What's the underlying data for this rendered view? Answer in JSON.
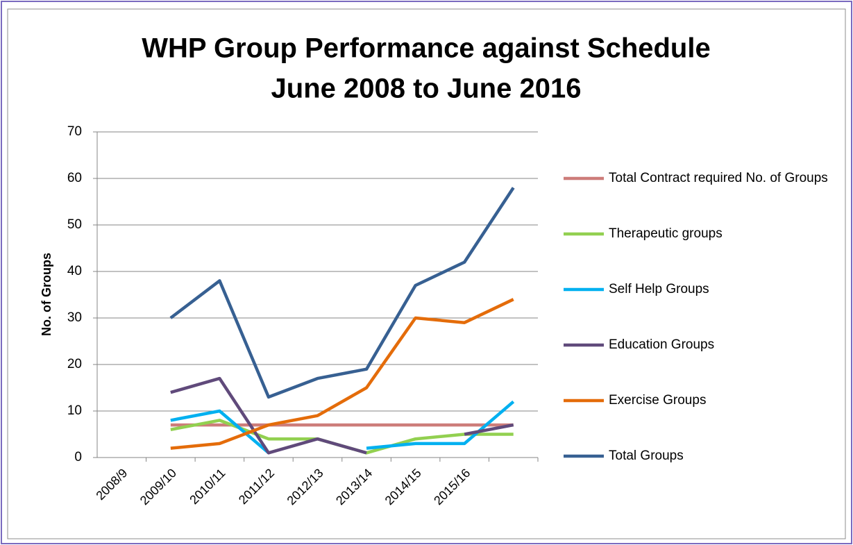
{
  "chart_data": {
    "type": "line",
    "title": [
      "WHP Group Performance against Schedule",
      "June 2008 to June 2016"
    ],
    "y_label": "No. of Groups",
    "categories": [
      "2008/9",
      "2009/10",
      "2010/11",
      "2011/12",
      "2012/13",
      "2013/14",
      "2014/15",
      "2015/16",
      null
    ],
    "series": [
      {
        "name": "Total Contract required No. of Groups",
        "color": "#cd7d7a",
        "values": [
          null,
          7,
          7,
          7,
          7,
          7,
          7,
          7,
          7
        ]
      },
      {
        "name": "Therapeutic groups",
        "color": "#92d050",
        "values": [
          null,
          6,
          8,
          4,
          4,
          1,
          4,
          5,
          5
        ]
      },
      {
        "name": "Self Help Groups",
        "color": "#00b0f0",
        "values": [
          null,
          8,
          10,
          1,
          null,
          2,
          3,
          3,
          12
        ]
      },
      {
        "name": "Education Groups",
        "color": "#604a7b",
        "values": [
          null,
          14,
          17,
          1,
          4,
          1,
          null,
          5,
          7
        ]
      },
      {
        "name": "Exercise Groups",
        "color": "#e46c0a",
        "values": [
          null,
          2,
          3,
          7,
          9,
          15,
          30,
          29,
          34
        ]
      },
      {
        "name": "Total Groups",
        "color": "#376092",
        "values": [
          null,
          30,
          38,
          13,
          17,
          19,
          37,
          42,
          58
        ]
      }
    ],
    "ylim": [
      0,
      70
    ],
    "yticks": [
      0,
      10,
      20,
      30,
      40,
      50,
      60,
      70
    ],
    "grid": true,
    "legend": "right"
  }
}
